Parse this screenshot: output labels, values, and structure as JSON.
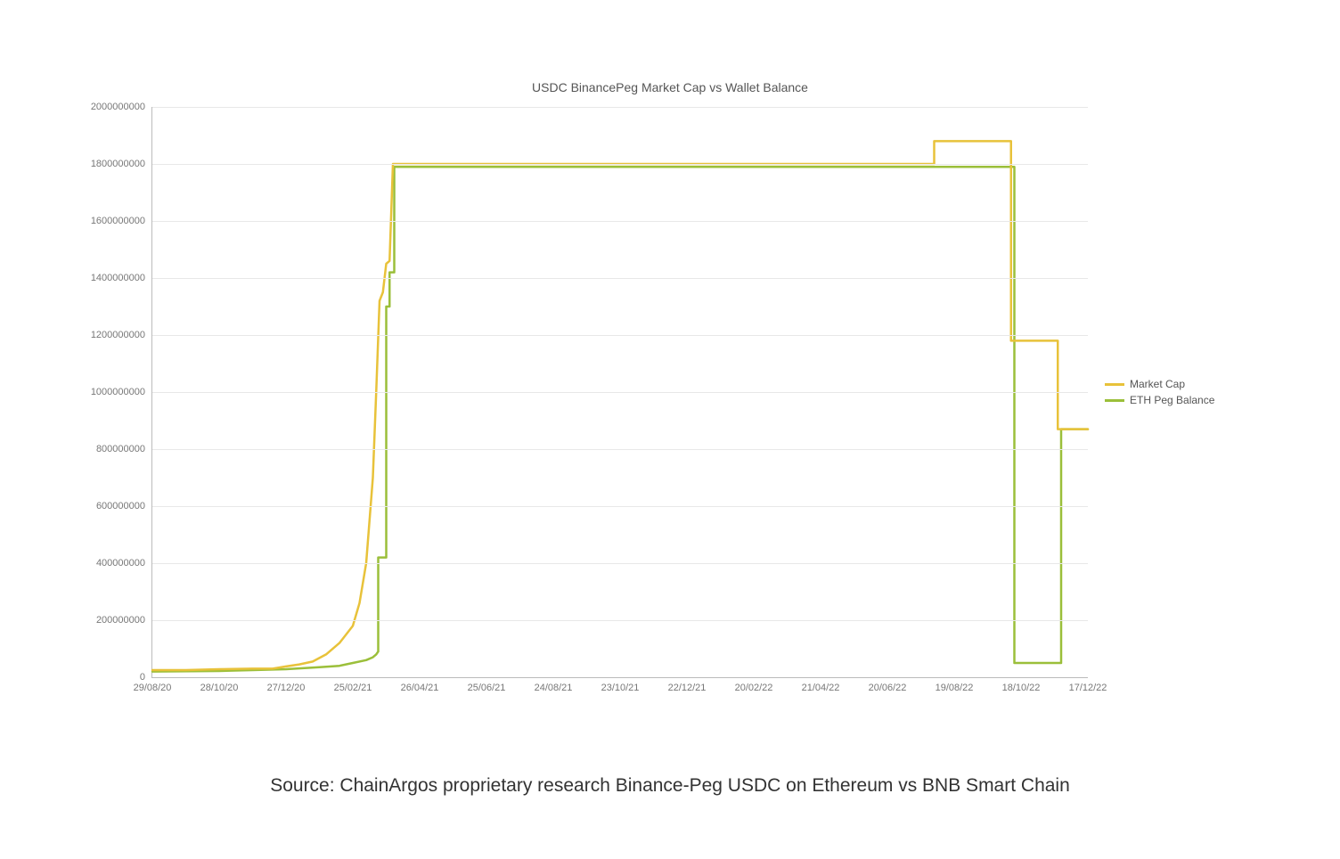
{
  "chart": {
    "type": "line-step",
    "title": "USDC BinancePeg Market Cap vs Wallet Balance",
    "title_fontsize": 14,
    "title_color": "#555555",
    "background_color": "#ffffff",
    "plot_bg": "#ffffff",
    "grid_color": "#e8e8e8",
    "axis_color": "#bbbbbb",
    "line_width": 2.5,
    "ylim": [
      0,
      2000000000
    ],
    "y_ticks": [
      0,
      200000000,
      400000000,
      600000000,
      800000000,
      1000000000,
      1200000000,
      1400000000,
      1600000000,
      1800000000,
      2000000000
    ],
    "y_tick_labels": [
      "0",
      "200000000",
      "400000000",
      "600000000",
      "800000000",
      "1000000000",
      "1200000000",
      "1400000000",
      "1600000000",
      "1800000000",
      "2000000000"
    ],
    "x_categories": [
      "29/08/20",
      "28/10/20",
      "27/12/20",
      "25/02/21",
      "26/04/21",
      "25/06/21",
      "24/08/21",
      "23/10/21",
      "22/12/21",
      "20/02/22",
      "21/04/22",
      "20/06/22",
      "19/08/22",
      "18/10/22",
      "17/12/22"
    ],
    "tick_fontsize": 11,
    "tick_color": "#777777",
    "legend": {
      "position": "right-middle",
      "fontsize": 12,
      "items": [
        {
          "key": "market_cap",
          "label": "Market Cap",
          "color": "#e8c23a"
        },
        {
          "key": "eth_peg_balance",
          "label": "ETH Peg Balance",
          "color": "#9bbf3a"
        }
      ]
    },
    "series": {
      "market_cap": {
        "color": "#e8c23a",
        "step_mode": "hv",
        "points": [
          [
            0.0,
            25000000
          ],
          [
            0.5,
            25000000
          ],
          [
            1.0,
            28000000
          ],
          [
            1.5,
            30000000
          ],
          [
            1.8,
            30000000
          ],
          [
            2.0,
            38000000
          ],
          [
            2.2,
            45000000
          ],
          [
            2.4,
            55000000
          ],
          [
            2.6,
            80000000
          ],
          [
            2.8,
            120000000
          ],
          [
            3.0,
            180000000
          ],
          [
            3.1,
            260000000
          ],
          [
            3.2,
            400000000
          ],
          [
            3.3,
            700000000
          ],
          [
            3.35,
            1000000000
          ],
          [
            3.4,
            1320000000
          ],
          [
            3.45,
            1350000000
          ],
          [
            3.5,
            1450000000
          ],
          [
            3.55,
            1460000000
          ],
          [
            3.6,
            1800000000
          ],
          [
            11.7,
            1800000000
          ],
          [
            11.7,
            1880000000
          ],
          [
            12.85,
            1880000000
          ],
          [
            12.85,
            1180000000
          ],
          [
            13.55,
            1180000000
          ],
          [
            13.55,
            870000000
          ],
          [
            14.0,
            870000000
          ]
        ]
      },
      "eth_peg_balance": {
        "color": "#9bbf3a",
        "step_mode": "hv",
        "points": [
          [
            0.0,
            20000000
          ],
          [
            1.0,
            22000000
          ],
          [
            1.5,
            25000000
          ],
          [
            2.0,
            28000000
          ],
          [
            2.5,
            35000000
          ],
          [
            2.8,
            40000000
          ],
          [
            3.0,
            50000000
          ],
          [
            3.2,
            60000000
          ],
          [
            3.3,
            70000000
          ],
          [
            3.35,
            80000000
          ],
          [
            3.38,
            90000000
          ],
          [
            3.38,
            420000000
          ],
          [
            3.5,
            420000000
          ],
          [
            3.5,
            1300000000
          ],
          [
            3.55,
            1300000000
          ],
          [
            3.55,
            1420000000
          ],
          [
            3.62,
            1420000000
          ],
          [
            3.62,
            1790000000
          ],
          [
            12.9,
            1790000000
          ],
          [
            12.9,
            50000000
          ],
          [
            13.6,
            50000000
          ],
          [
            13.6,
            870000000
          ],
          [
            14.0,
            870000000
          ]
        ]
      }
    }
  },
  "caption": "Source: ChainArgos proprietary research Binance-Peg USDC on Ethereum vs BNB Smart Chain",
  "caption_fontsize": 21,
  "caption_color": "#333333"
}
